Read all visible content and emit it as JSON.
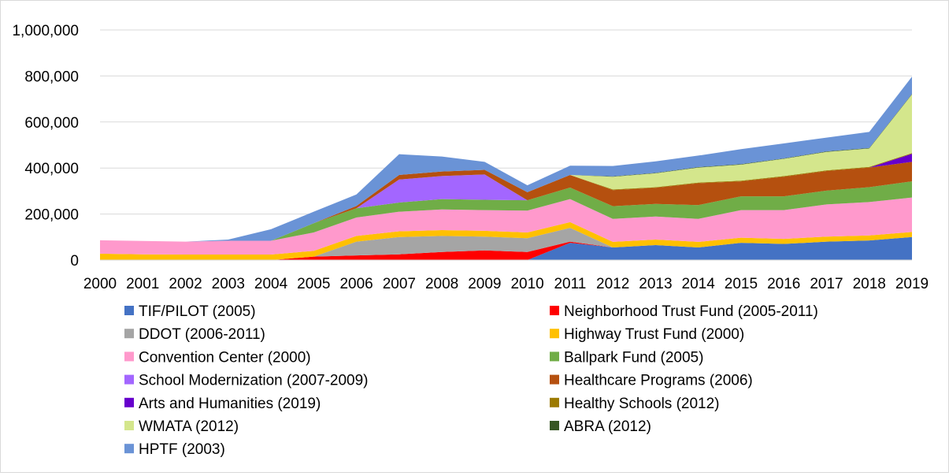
{
  "chart_data": {
    "type": "area",
    "stacked": true,
    "title": "",
    "xlabel": "",
    "ylabel": "",
    "x": [
      "2000",
      "2001",
      "2002",
      "2003",
      "2004",
      "2005",
      "2006",
      "2007",
      "2008",
      "2009",
      "2010",
      "2011",
      "2012",
      "2013",
      "2014",
      "2015",
      "2016",
      "2017",
      "2018",
      "2019"
    ],
    "ylim": [
      0,
      1000000
    ],
    "yticks": [
      "0",
      "200,000",
      "400,000",
      "600,000",
      "800,000",
      "1,000,000"
    ],
    "ytick_values": [
      0,
      200000,
      400000,
      600000,
      800000,
      1000000
    ],
    "grid": true,
    "legend_position": "bottom",
    "series": [
      {
        "name": "TIF/PILOT (2005)",
        "color": "#4472C4",
        "values": [
          0,
          0,
          0,
          0,
          0,
          0,
          0,
          0,
          0,
          0,
          0,
          75000,
          55000,
          65000,
          55000,
          75000,
          70000,
          80000,
          85000,
          100000
        ]
      },
      {
        "name": "Neighborhood Trust Fund (2005-2011)",
        "color": "#FF0000",
        "values": [
          0,
          0,
          0,
          0,
          0,
          15000,
          20000,
          25000,
          35000,
          42000,
          35000,
          5000,
          0,
          0,
          0,
          0,
          0,
          0,
          0,
          0
        ]
      },
      {
        "name": "DDOT (2006-2011)",
        "color": "#A5A5A5",
        "values": [
          0,
          0,
          0,
          0,
          0,
          0,
          60000,
          75000,
          70000,
          60000,
          60000,
          60000,
          0,
          0,
          0,
          0,
          0,
          0,
          0,
          0
        ]
      },
      {
        "name": "Highway Trust Fund (2000)",
        "color": "#FFC000",
        "values": [
          28000,
          25000,
          24000,
          24000,
          24000,
          25000,
          25000,
          25000,
          25000,
          25000,
          25000,
          25000,
          24000,
          24000,
          24000,
          22000,
          22000,
          22000,
          22000,
          22000
        ]
      },
      {
        "name": "Convention Center (2000)",
        "color": "#FF99CC",
        "values": [
          58000,
          58000,
          56000,
          60000,
          60000,
          80000,
          80000,
          85000,
          90000,
          90000,
          95000,
          100000,
          100000,
          100000,
          100000,
          120000,
          125000,
          140000,
          145000,
          150000
        ]
      },
      {
        "name": "Ballpark Fund (2005)",
        "color": "#70AD47",
        "values": [
          0,
          0,
          0,
          0,
          0,
          40000,
          40000,
          40000,
          45000,
          45000,
          45000,
          50000,
          55000,
          55000,
          60000,
          60000,
          60000,
          60000,
          65000,
          70000
        ]
      },
      {
        "name": "School Modernization (2007-2009)",
        "color": "#A366FF",
        "values": [
          0,
          0,
          0,
          0,
          0,
          0,
          0,
          100000,
          100000,
          110000,
          0,
          0,
          0,
          0,
          0,
          0,
          0,
          0,
          0,
          0
        ]
      },
      {
        "name": "Healthcare Programs (2006)",
        "color": "#B5500F",
        "values": [
          0,
          0,
          0,
          0,
          0,
          0,
          10000,
          20000,
          20000,
          20000,
          35000,
          55000,
          70000,
          70000,
          95000,
          65000,
          85000,
          85000,
          85000,
          85000
        ]
      },
      {
        "name": "Arts and Humanities (2019)",
        "color": "#6600CC",
        "values": [
          0,
          0,
          0,
          0,
          0,
          0,
          0,
          0,
          0,
          0,
          0,
          0,
          0,
          0,
          0,
          0,
          0,
          0,
          0,
          35000
        ]
      },
      {
        "name": "Healthy Schools (2012)",
        "color": "#9C7A00",
        "values": [
          0,
          0,
          0,
          0,
          0,
          0,
          0,
          0,
          0,
          0,
          0,
          0,
          3000,
          3000,
          3000,
          3000,
          3000,
          3000,
          3000,
          3000
        ]
      },
      {
        "name": "WMATA (2012)",
        "color": "#D4E68C",
        "values": [
          0,
          0,
          0,
          0,
          0,
          0,
          0,
          0,
          0,
          0,
          0,
          0,
          55000,
          60000,
          65000,
          70000,
          75000,
          80000,
          80000,
          255000
        ]
      },
      {
        "name": "ABRA (2012)",
        "color": "#385723",
        "values": [
          0,
          0,
          0,
          0,
          0,
          0,
          0,
          0,
          0,
          0,
          0,
          0,
          2000,
          2000,
          2000,
          2000,
          2000,
          2000,
          2000,
          2000
        ]
      },
      {
        "name": "HPTF (2003)",
        "color": "#6A93D6",
        "values": [
          0,
          0,
          0,
          5000,
          50000,
          50000,
          50000,
          90000,
          65000,
          35000,
          30000,
          40000,
          45000,
          50000,
          50000,
          65000,
          65000,
          60000,
          70000,
          75000
        ]
      }
    ]
  }
}
